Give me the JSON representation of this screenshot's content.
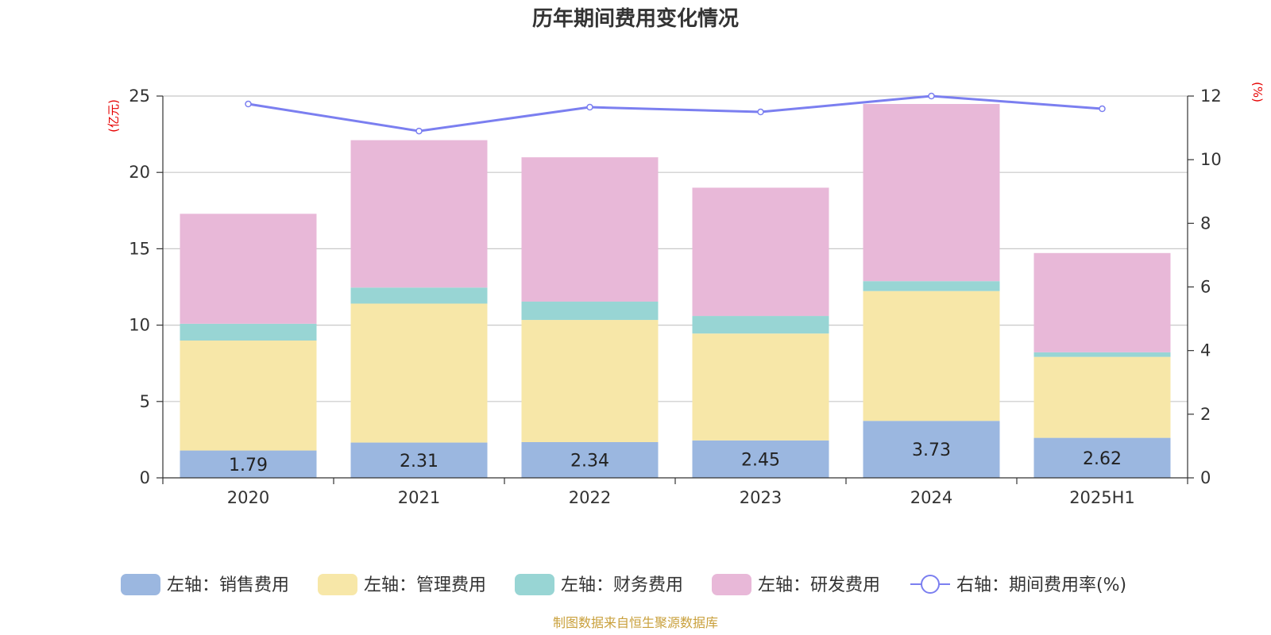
{
  "chart_data": {
    "type": "bar",
    "title": "历年期间费用变化情况",
    "categories": [
      "2020",
      "2021",
      "2022",
      "2023",
      "2024",
      "2025H1"
    ],
    "left_axis": {
      "unit_label": "(亿元)",
      "ylim": [
        0,
        25
      ],
      "ticks": [
        0,
        5,
        10,
        15,
        20,
        25
      ]
    },
    "right_axis": {
      "unit_label": "(%)",
      "ylim": [
        0,
        12
      ],
      "ticks": [
        0,
        2,
        4,
        6,
        8,
        10,
        12
      ]
    },
    "series": [
      {
        "name": "左轴：销售费用",
        "axis": "left",
        "stack": true,
        "color": "#9bb7e0",
        "values": [
          1.79,
          2.31,
          2.34,
          2.45,
          3.73,
          2.62
        ],
        "data_labels": [
          "1.79",
          "2.31",
          "2.34",
          "2.45",
          "3.73",
          "2.62"
        ]
      },
      {
        "name": "左轴：管理费用",
        "axis": "left",
        "stack": true,
        "color": "#f7e7a8",
        "values": [
          7.2,
          9.1,
          8.0,
          7.0,
          8.5,
          5.3
        ]
      },
      {
        "name": "左轴：财务费用",
        "axis": "left",
        "stack": true,
        "color": "#98d5d4",
        "values": [
          1.1,
          1.05,
          1.2,
          1.15,
          0.65,
          0.3
        ]
      },
      {
        "name": "左轴：研发费用",
        "axis": "left",
        "stack": true,
        "color": "#e8b8d8",
        "values": [
          7.2,
          9.65,
          9.45,
          8.4,
          11.6,
          6.5
        ]
      },
      {
        "name": "右轴：期间费用率(%)",
        "axis": "right",
        "type": "line",
        "color": "#7b7ff0",
        "values": [
          11.75,
          10.9,
          11.65,
          11.5,
          12.0,
          11.6
        ]
      }
    ],
    "grid": true,
    "legend_position": "bottom"
  },
  "source": "制图数据来自恒生聚源数据库"
}
